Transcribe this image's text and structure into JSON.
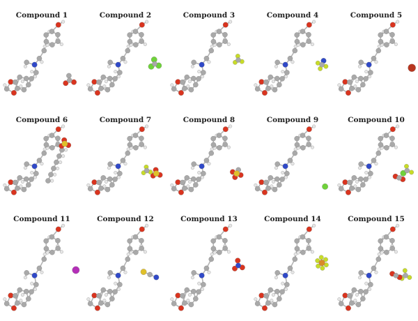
{
  "colors": {
    "carbon": "#a9a9a9",
    "hydrogen": "#e6e6e6",
    "oxygen": "#d9341f",
    "nitrogen": "#3049c8",
    "fluorine": "#c8dc28",
    "chlorine": "#6fd23a",
    "iodine": "#b42fb8",
    "bromine": "#b8351e",
    "sulfur": "#e0c02a",
    "phosphorus": "#d98a2a",
    "bond": "#b4b4b4"
  },
  "compounds": [
    {
      "label": "Compound 1",
      "counter": "acetate"
    },
    {
      "label": "Compound 2",
      "counter": "trifluoromethyl-green"
    },
    {
      "label": "Compound 3",
      "counter": "small-yellow"
    },
    {
      "label": "Compound 4",
      "counter": "bf4"
    },
    {
      "label": "Compound 5",
      "counter": "bromide"
    },
    {
      "label": "Compound 6",
      "counter": "alkyl-sulfonate"
    },
    {
      "label": "Compound 7",
      "counter": "triflate"
    },
    {
      "label": "Compound 8",
      "counter": "mesylate"
    },
    {
      "label": "Compound 9",
      "counter": "chloride"
    },
    {
      "label": "Compound 10",
      "counter": "chlorodifluoroacetate"
    },
    {
      "label": "Compound 11",
      "counter": "iodide"
    },
    {
      "label": "Compound 12",
      "counter": "thiocyanate"
    },
    {
      "label": "Compound 13",
      "counter": "nitrate"
    },
    {
      "label": "Compound 14",
      "counter": "hexafluorophosphate"
    },
    {
      "label": "Compound 15",
      "counter": "trifluoroacetate"
    }
  ]
}
